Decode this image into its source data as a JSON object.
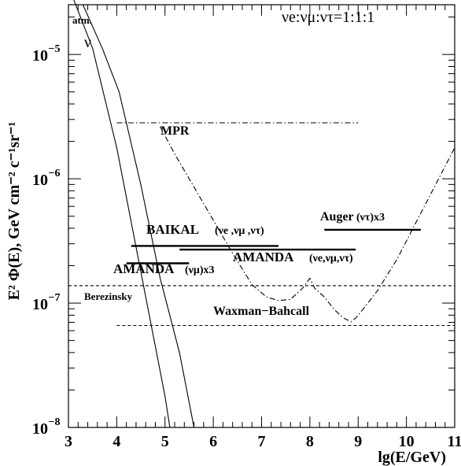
{
  "chart_data": {
    "type": "line",
    "xlabel": "lg(E/GeV)",
    "ylabel": "E² Φ(E), GeV cm⁻² c⁻¹sr⁻¹",
    "xlim": [
      3,
      11
    ],
    "ylim_log10": [
      -8,
      -4.6
    ],
    "y_scale": "log",
    "x_ticks": [
      "3",
      "4",
      "5",
      "6",
      "7",
      "8",
      "9",
      "10",
      "11"
    ],
    "y_ticks": [
      {
        "exp": -5,
        "base": "10",
        "sup": "−5"
      },
      {
        "exp": -6,
        "base": "10",
        "sup": "−6"
      },
      {
        "exp": -7,
        "base": "10",
        "sup": "−7"
      },
      {
        "exp": -8,
        "base": "10",
        "sup": "−8"
      }
    ],
    "flavor_ratio": "νe:νμ:ντ=1:1:1",
    "series": [
      {
        "name": "atm. ν",
        "style": "solid",
        "x": [
          3.0,
          3.5,
          4.0,
          4.5,
          5.0,
          5.1
        ],
        "log10_y": [
          -4.45,
          -4.95,
          -5.75,
          -6.75,
          -7.75,
          -8.0
        ]
      },
      {
        "name": "atm. ν",
        "style": "solid",
        "x": [
          3.3,
          3.7,
          4.05,
          4.5,
          4.9,
          5.3,
          5.6
        ],
        "log10_y": [
          -4.6,
          -4.95,
          -5.3,
          -6.05,
          -6.8,
          -7.4,
          -8.0
        ]
      },
      {
        "name": "MPR",
        "style": "dash-dot",
        "x": [
          4.0,
          9.0
        ],
        "log10_y": [
          -5.55,
          -5.55
        ]
      },
      {
        "name": "MPR",
        "style": "dash-dot",
        "x": [
          4.9,
          5.2,
          5.8,
          6.4,
          6.8,
          7.1,
          7.35,
          7.6,
          7.85,
          8.0,
          8.1,
          8.3,
          8.5,
          8.7,
          8.85,
          8.95,
          9.1,
          9.4,
          9.8,
          10.2,
          10.6,
          11.0
        ],
        "log10_y": [
          -5.58,
          -5.8,
          -6.2,
          -6.6,
          -6.85,
          -6.95,
          -6.98,
          -6.97,
          -6.88,
          -6.8,
          -6.88,
          -6.95,
          -7.05,
          -7.12,
          -7.15,
          -7.12,
          -7.05,
          -6.9,
          -6.65,
          -6.35,
          -6.05,
          -5.75
        ]
      },
      {
        "name": "Berezinsky",
        "style": "dashed",
        "x": [
          3.0,
          11.0
        ],
        "log10_y": [
          -6.86,
          -6.86
        ]
      },
      {
        "name": "Waxman–Bahcall",
        "style": "dashed",
        "x": [
          4.0,
          11.0
        ],
        "log10_y": [
          -7.18,
          -7.18
        ]
      },
      {
        "name": "BAIKAL(νe,νμ,ντ)",
        "style": "limit",
        "x": [
          4.3,
          7.35
        ],
        "log10_y": [
          -6.54,
          -6.54
        ]
      },
      {
        "name": "AMANDA(νe,νμ,ντ)",
        "style": "limit",
        "x": [
          5.3,
          8.95
        ],
        "log10_y": [
          -6.57,
          -6.57
        ]
      },
      {
        "name": "AMANDA(νμ)x3",
        "style": "limit",
        "x": [
          4.2,
          5.5
        ],
        "log10_y": [
          -6.68,
          -6.68
        ]
      },
      {
        "name": "Auger(ντ)x3",
        "style": "limit",
        "x": [
          8.3,
          10.3
        ],
        "log10_y": [
          -6.41,
          -6.41
        ]
      }
    ],
    "labels": {
      "atm": "atm.",
      "nu": "ν",
      "mpr": "MPR",
      "baikal": "BAIKAL",
      "baikal_flavors": "(νe ,νμ ,ντ)",
      "amanda_all": "AMANDA",
      "amanda_all_flavors": "(νe,νμ,ντ)",
      "amanda_mu": "AMANDA",
      "amanda_mu_flavor": "(νμ)x3",
      "auger": "Auger",
      "auger_flavor": "(ντ)x3",
      "berezinsky": "Berezinsky",
      "waxman": "Waxman−Bahcall"
    }
  }
}
